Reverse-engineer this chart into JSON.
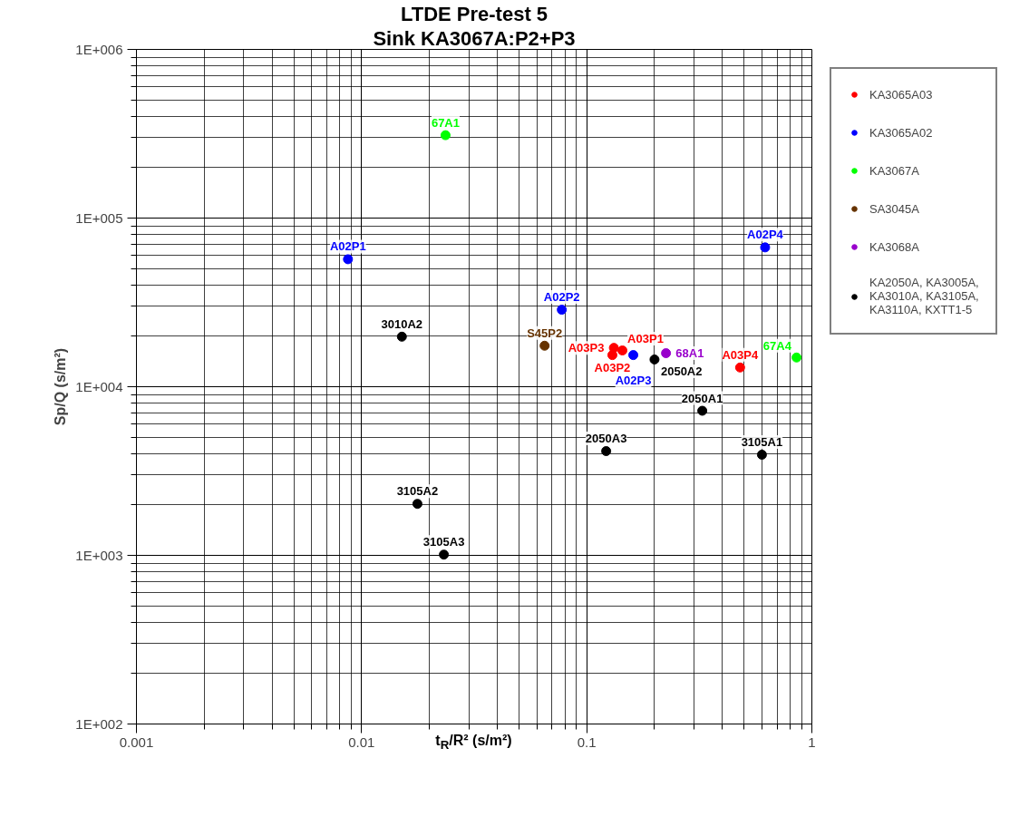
{
  "chart_data": {
    "type": "scatter",
    "title": "LTDE Pre-test 5",
    "subtitle": "Sink KA3067A:P2+P3",
    "xlabel": "t$_{R}$/R² (s/m²)",
    "ylabel": "Sp/Q (s/m²)",
    "log": "xy",
    "grid": true,
    "legend": "right",
    "marker": "circle",
    "xlim": [
      0.001,
      1
    ],
    "ylim": [
      100,
      1000000
    ],
    "xticks": [
      0.001,
      0.01,
      0.1,
      1
    ],
    "yticks": [
      {
        "value": 100,
        "label": "1E+002"
      },
      {
        "value": 1000,
        "label": "1E+003"
      },
      {
        "value": 10000,
        "label": "1E+004"
      },
      {
        "value": 100000,
        "label": "1E+005"
      },
      {
        "value": 1000000,
        "label": "1E+006"
      }
    ],
    "series": [
      {
        "name": "KA3065A03",
        "color": "#ff0000",
        "x": [
          0.144,
          0.132,
          0.13,
          0.48
        ],
        "values": [
          16400,
          17000,
          15400,
          13000
        ]
      },
      {
        "name": "KA3065A02",
        "color": "#0000ff",
        "x": [
          0.0087,
          0.0775,
          0.161,
          0.62
        ],
        "values": [
          57000,
          28600,
          15400,
          67000
        ]
      },
      {
        "name": "KA3067A",
        "color": "#00ff00",
        "x": [
          0.0236,
          0.855
        ],
        "values": [
          310000,
          14900
        ]
      },
      {
        "name": "SA3045A",
        "color": "#663300",
        "x": [
          0.065
        ],
        "values": [
          17500
        ]
      },
      {
        "name": "KA3068A",
        "color": "#9900cc",
        "x": [
          0.225
        ],
        "values": [
          15800
        ]
      },
      {
        "name": "KA2050A, KA3005A, KA3010A, KA3105A, KA3110A, KXTT1-5",
        "color": "#000000",
        "x": [
          0.0151,
          0.2,
          0.326,
          0.122,
          0.6,
          0.0177,
          0.0232
        ],
        "values": [
          19800,
          14500,
          7200,
          4150,
          3950,
          2020,
          1010
        ]
      }
    ],
    "annotations": [
      {
        "text": "A03P1",
        "x": 0.144,
        "y": 16400
      },
      {
        "text": "A03P3",
        "x": 0.132,
        "y": 17000
      },
      {
        "text": "A03P2",
        "x": 0.13,
        "y": 15400
      },
      {
        "text": "A03P4",
        "x": 0.48,
        "y": 13000
      },
      {
        "text": "A02P1",
        "x": 0.0087,
        "y": 57000
      },
      {
        "text": "A02P2",
        "x": 0.0775,
        "y": 28600
      },
      {
        "text": "A02P3",
        "x": 0.161,
        "y": 15400
      },
      {
        "text": "A02P4",
        "x": 0.62,
        "y": 67000
      },
      {
        "text": "67A1",
        "x": 0.0236,
        "y": 310000
      },
      {
        "text": "67A4",
        "x": 0.855,
        "y": 14900
      },
      {
        "text": "S45P2",
        "x": 0.065,
        "y": 17500
      },
      {
        "text": "68A1",
        "x": 0.225,
        "y": 15800
      },
      {
        "text": "3010A2",
        "x": 0.0151,
        "y": 19800
      },
      {
        "text": "2050A2",
        "x": 0.2,
        "y": 14500
      },
      {
        "text": "2050A1",
        "x": 0.326,
        "y": 7200
      },
      {
        "text": "2050A3",
        "x": 0.122,
        "y": 4150
      },
      {
        "text": "3105A1",
        "x": 0.6,
        "y": 3950
      },
      {
        "text": "3105A2",
        "x": 0.0177,
        "y": 2020
      },
      {
        "text": "3105A3",
        "x": 0.0232,
        "y": 1010
      }
    ]
  }
}
